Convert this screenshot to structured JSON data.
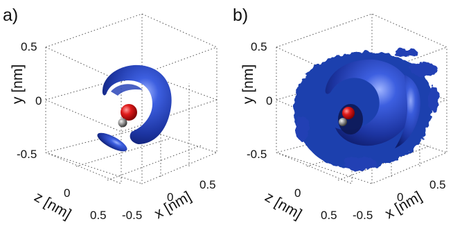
{
  "panels": [
    {
      "label": "a)",
      "y_axis": {
        "label": "y [nm]",
        "ticks": [
          "0.5",
          "0",
          "-0.5"
        ]
      },
      "z_axis": {
        "label": "z [nm]",
        "ticks": [
          "0",
          "0.5"
        ]
      },
      "x_axis": {
        "label": "x [nm]",
        "ticks": [
          "-0.5",
          "0",
          "0.5"
        ]
      }
    },
    {
      "label": "b)",
      "y_axis": {
        "label": "y [nm]",
        "ticks": [
          "0.5",
          "0",
          "-0.5"
        ]
      },
      "z_axis": {
        "label": "z [nm]",
        "ticks": [
          "0",
          "0.5"
        ]
      },
      "x_axis": {
        "label": "x [nm]",
        "ticks": [
          "-0.5",
          "0",
          "0.5"
        ]
      }
    }
  ],
  "colors": {
    "isosurface": "#1f3fae",
    "oxygen": "#d80a10",
    "hydrogen": "#8a8a8a"
  }
}
